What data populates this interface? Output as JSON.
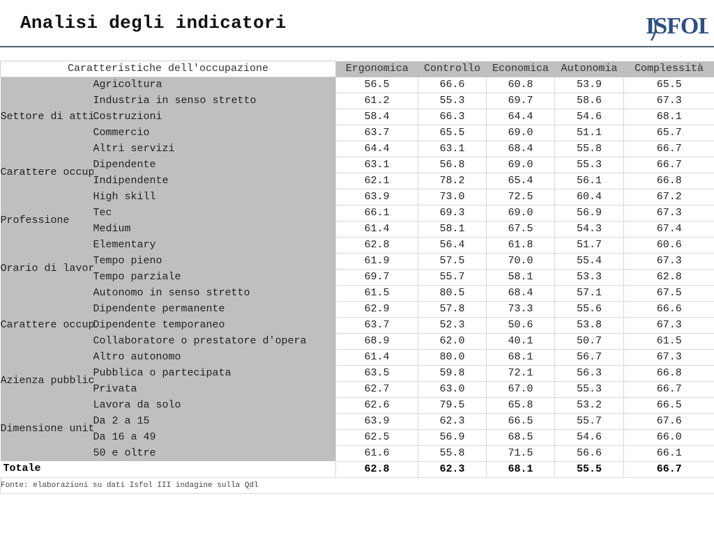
{
  "title": "Analisi degli indicatori",
  "logo_text": "ISFOL",
  "colors": {
    "header_bg": "#bfbfbf",
    "rule": "#50606e",
    "logo": "#2d4f82"
  },
  "header": {
    "row_label": "Caratteristiche dell'occupazione",
    "columns": [
      "Ergonomica",
      "Controllo",
      "Economica",
      "Autonomia",
      "Complessità"
    ]
  },
  "groups": [
    {
      "label": "Settore di attività",
      "rows": [
        {
          "label": "Agricoltura",
          "values": [
            "56.5",
            "66.6",
            "60.8",
            "53.9",
            "65.5"
          ]
        },
        {
          "label": "Industria in senso stretto",
          "values": [
            "61.2",
            "55.3",
            "69.7",
            "58.6",
            "67.3"
          ]
        },
        {
          "label": "Costruzioni",
          "values": [
            "58.4",
            "66.3",
            "64.4",
            "54.6",
            "68.1"
          ]
        },
        {
          "label": "Commercio",
          "values": [
            "63.7",
            "65.5",
            "69.0",
            "51.1",
            "65.7"
          ]
        },
        {
          "label": "Altri servizi",
          "values": [
            "64.4",
            "63.1",
            "68.4",
            "55.8",
            "66.7"
          ]
        }
      ]
    },
    {
      "label": "Carattere occupazione",
      "rows": [
        {
          "label": "Dipendente",
          "values": [
            "63.1",
            "56.8",
            "69.0",
            "55.3",
            "66.7"
          ]
        },
        {
          "label": "Indipendente",
          "values": [
            "62.1",
            "78.2",
            "65.4",
            "56.1",
            "66.8"
          ]
        }
      ]
    },
    {
      "label": "Professione",
      "rows": [
        {
          "label": "High skill",
          "values": [
            "63.9",
            "73.0",
            "72.5",
            "60.4",
            "67.2"
          ]
        },
        {
          "label": "Tec",
          "values": [
            "66.1",
            "69.3",
            "69.0",
            "56.9",
            "67.3"
          ]
        },
        {
          "label": "Medium",
          "values": [
            "61.4",
            "58.1",
            "67.5",
            "54.3",
            "67.4"
          ]
        },
        {
          "label": "Elementary",
          "values": [
            "62.8",
            "56.4",
            "61.8",
            "51.7",
            "60.6"
          ]
        }
      ]
    },
    {
      "label": "Orario di lavoro",
      "rows": [
        {
          "label": "Tempo pieno",
          "values": [
            "61.9",
            "57.5",
            "70.0",
            "55.4",
            "67.3"
          ]
        },
        {
          "label": "Tempo parziale",
          "values": [
            "69.7",
            "55.7",
            "58.1",
            "53.3",
            "62.8"
          ]
        }
      ]
    },
    {
      "label": "Carattere occupazione esteso",
      "rows": [
        {
          "label": "Autonomo in senso stretto",
          "values": [
            "61.5",
            "80.5",
            "68.4",
            "57.1",
            "67.5"
          ]
        },
        {
          "label": "Dipendente permanente",
          "values": [
            "62.9",
            "57.8",
            "73.3",
            "55.6",
            "66.6"
          ]
        },
        {
          "label": "Dipendente temporaneo",
          "values": [
            "63.7",
            "52.3",
            "50.6",
            "53.8",
            "67.3"
          ]
        },
        {
          "label": "Collaboratore o prestatore d'opera",
          "values": [
            "68.9",
            "62.0",
            "40.1",
            "50.7",
            "61.5"
          ]
        },
        {
          "label": "Altro autonomo",
          "values": [
            "61.4",
            "80.0",
            "68.1",
            "56.7",
            "67.3"
          ]
        }
      ]
    },
    {
      "label": "Azienza pubblica o",
      "rows": [
        {
          "label": "Pubblica o partecipata",
          "values": [
            "63.5",
            "59.8",
            "72.1",
            "56.3",
            "66.8"
          ]
        },
        {
          "label": "Privata",
          "values": [
            "62.7",
            "63.0",
            "67.0",
            "55.3",
            "66.7"
          ]
        }
      ]
    },
    {
      "label": "Dimensione unità locale",
      "rows": [
        {
          "label": "Lavora da solo",
          "values": [
            "62.6",
            "79.5",
            "65.8",
            "53.2",
            "66.5"
          ]
        },
        {
          "label": "Da 2 a 15",
          "values": [
            "63.9",
            "62.3",
            "66.5",
            "55.7",
            "67.6"
          ]
        },
        {
          "label": "Da 16 a 49",
          "values": [
            "62.5",
            "56.9",
            "68.5",
            "54.6",
            "66.0"
          ]
        },
        {
          "label": "50 e oltre",
          "values": [
            "61.6",
            "55.8",
            "71.5",
            "56.6",
            "66.1"
          ]
        }
      ]
    }
  ],
  "total": {
    "label": "Totale",
    "values": [
      "62.8",
      "62.3",
      "68.1",
      "55.5",
      "66.7"
    ]
  },
  "source": "Fonte: elaborazioni su dati Isfol III indagine sulla Qdl"
}
